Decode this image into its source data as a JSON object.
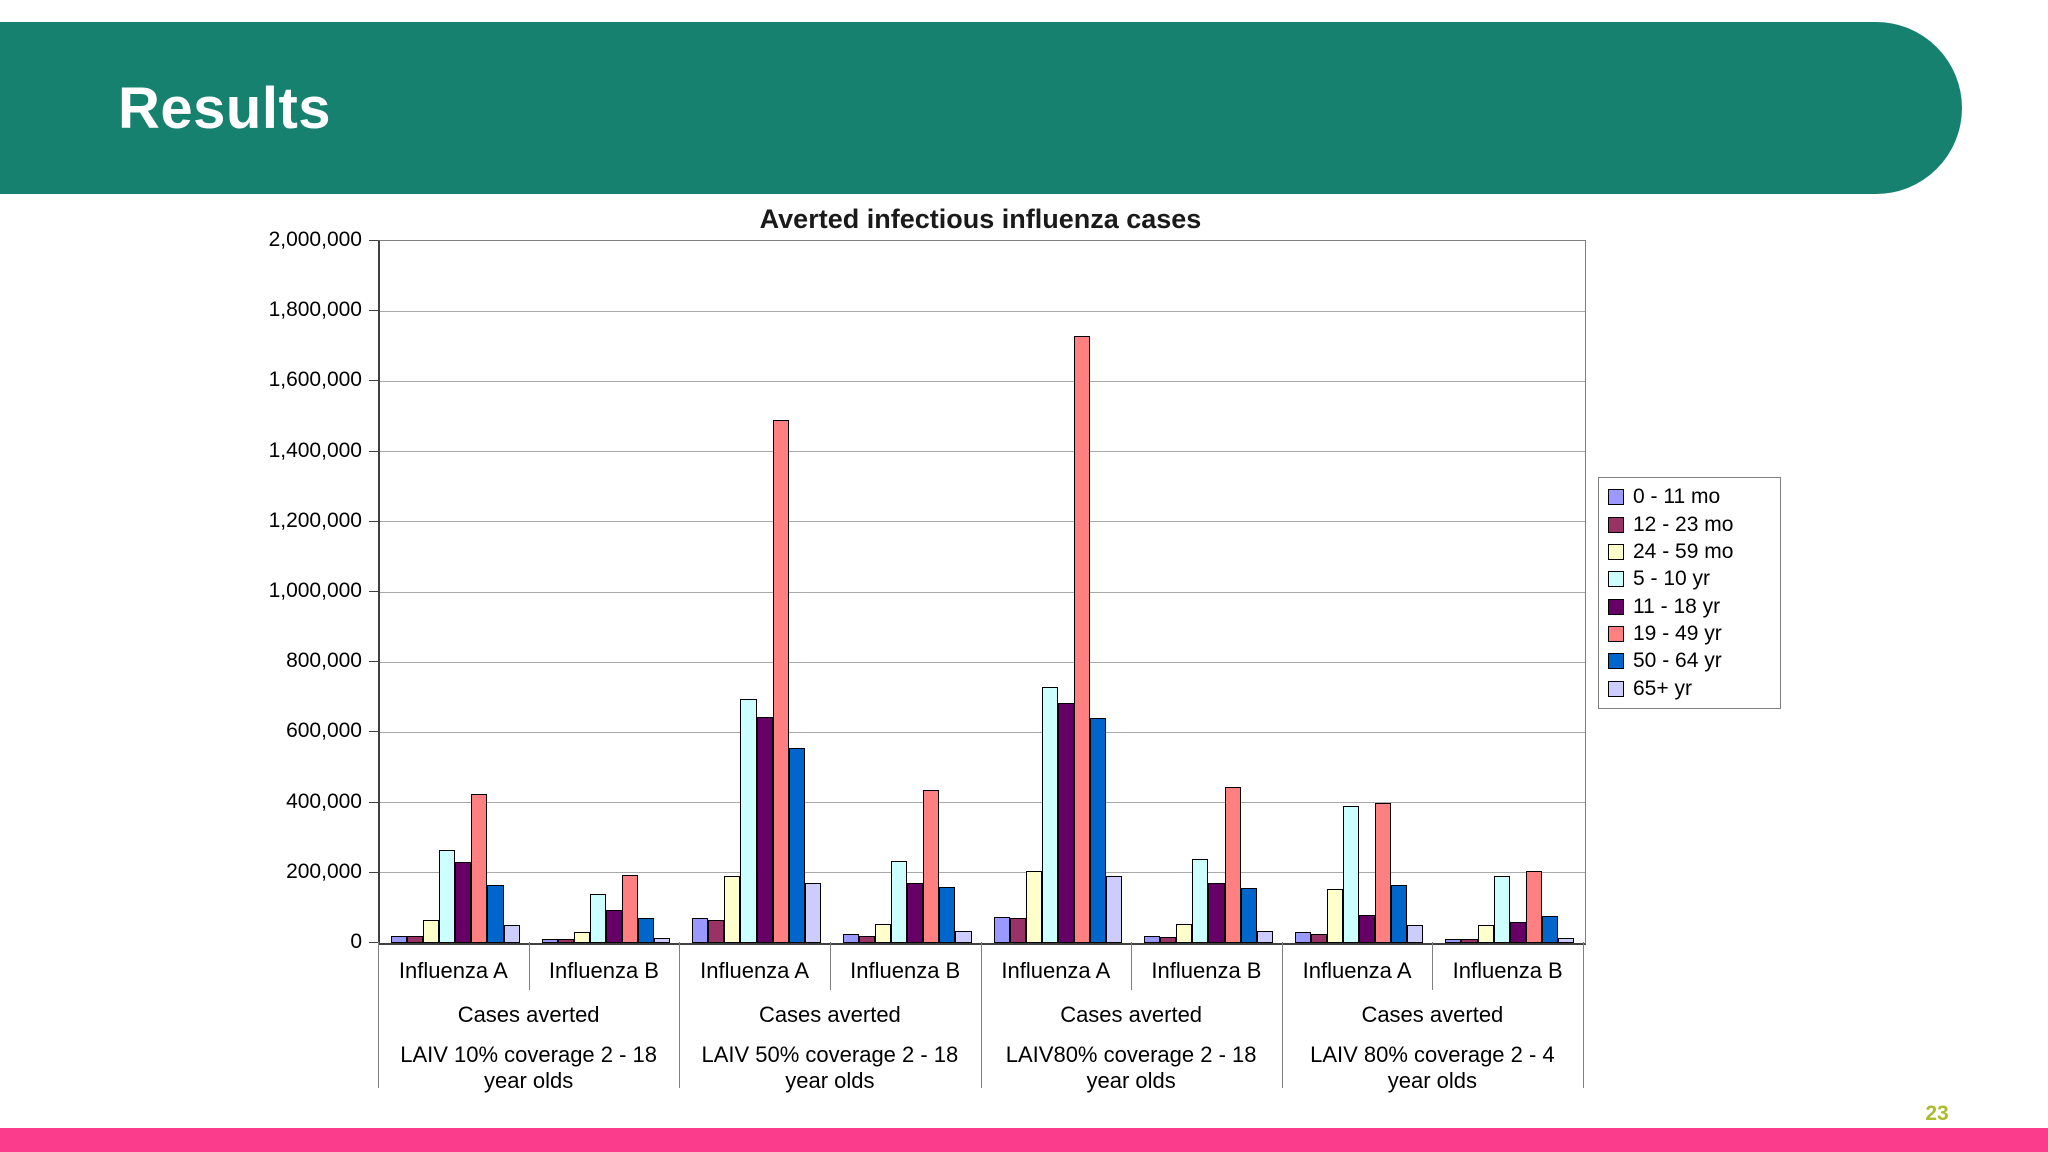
{
  "slide": {
    "title": "Results",
    "page_number": "23",
    "header_color": "#16816F",
    "footer_color": "#FB3C8C",
    "page_number_color": "#AEBB2D"
  },
  "chart_data": {
    "type": "bar",
    "title": "Averted infectious influenza cases",
    "xlabel": "",
    "ylabel": "",
    "ylim": [
      0,
      2000000
    ],
    "ytick_step": 200000,
    "ytick_labels": [
      "0",
      "200,000",
      "400,000",
      "600,000",
      "800,000",
      "1,000,000",
      "1,200,000",
      "1,400,000",
      "1,600,000",
      "1,800,000",
      "2,000,000"
    ],
    "grid": true,
    "legend_position": "right",
    "scenarios": [
      {
        "label": "LAIV 10% coverage 2 - 18 year olds",
        "measure": "Cases averted",
        "types": [
          "Influenza A",
          "Influenza B"
        ]
      },
      {
        "label": "LAIV 50% coverage 2 - 18 year olds",
        "measure": "Cases averted",
        "types": [
          "Influenza A",
          "Influenza B"
        ]
      },
      {
        "label": "LAIV80% coverage 2 - 18 year olds",
        "measure": "Cases averted",
        "types": [
          "Influenza A",
          "Influenza B"
        ]
      },
      {
        "label": "LAIV 80% coverage 2 - 4 year olds",
        "measure": "Cases averted",
        "types": [
          "Influenza A",
          "Influenza B"
        ]
      }
    ],
    "columns": [
      "LAIV 10% / Influenza A",
      "LAIV 10% / Influenza B",
      "LAIV 50% / Influenza A",
      "LAIV 50% / Influenza B",
      "LAIV80% 2-18 / Influenza A",
      "LAIV80% 2-18 / Influenza B",
      "LAIV 80% 2-4 / Influenza A",
      "LAIV 80% 2-4 / Influenza B"
    ],
    "series": [
      {
        "name": "0 - 11 mo",
        "color": "#9999FF",
        "values": [
          20000,
          10000,
          70000,
          25000,
          75000,
          20000,
          30000,
          10000
        ]
      },
      {
        "name": "12 - 23 mo",
        "color": "#993366",
        "values": [
          20000,
          10000,
          65000,
          20000,
          70000,
          17000,
          25000,
          10000
        ]
      },
      {
        "name": "24 - 59 mo",
        "color": "#FFFFCC",
        "values": [
          65000,
          30000,
          190000,
          55000,
          205000,
          55000,
          155000,
          50000
        ]
      },
      {
        "name": "5 - 10 yr",
        "color": "#CCFFFF",
        "values": [
          265000,
          140000,
          695000,
          235000,
          730000,
          240000,
          390000,
          190000
        ]
      },
      {
        "name": "11 - 18 yr",
        "color": "#660066",
        "values": [
          230000,
          95000,
          645000,
          170000,
          685000,
          170000,
          80000,
          60000
        ]
      },
      {
        "name": "19 - 49 yr",
        "color": "#FF8080",
        "values": [
          425000,
          195000,
          1490000,
          435000,
          1730000,
          445000,
          400000,
          205000
        ]
      },
      {
        "name": "50 - 64 yr",
        "color": "#0066CC",
        "values": [
          165000,
          70000,
          555000,
          160000,
          640000,
          158000,
          165000,
          78000
        ]
      },
      {
        "name": "65+ yr",
        "color": "#CCCCFF",
        "values": [
          50000,
          15000,
          170000,
          35000,
          190000,
          35000,
          50000,
          15000
        ]
      }
    ]
  }
}
